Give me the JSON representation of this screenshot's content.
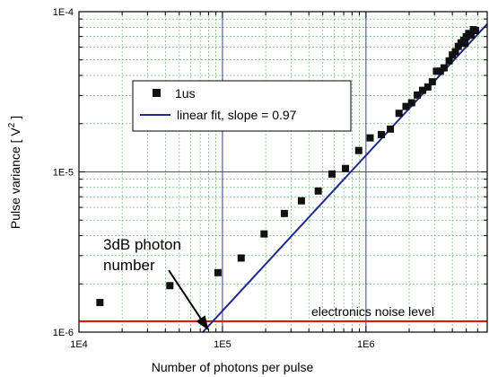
{
  "chart_data": {
    "type": "scatter",
    "xlabel": "Number of photons per pulse",
    "ylabel": "Pulse variance [ V",
    "ylabel_sup": "2",
    "ylabel_end": " ]",
    "x_scale": "log",
    "y_scale": "log",
    "xlim": [
      10000,
      7000000
    ],
    "ylim": [
      1e-06,
      0.0001
    ],
    "x_ticks": [
      {
        "value": 10000,
        "label": "1E4"
      },
      {
        "value": 100000,
        "label": "1E5"
      },
      {
        "value": 1000000,
        "label": "1E6"
      }
    ],
    "y_ticks": [
      {
        "value": 1e-06,
        "label": "1E-6"
      },
      {
        "value": 1e-05,
        "label": "1E-5"
      },
      {
        "value": 0.0001,
        "label": "1E-4"
      }
    ],
    "grid": true,
    "legend_position": "upper-left",
    "series": [
      {
        "name": "1us",
        "type": "scatter",
        "marker": "square",
        "color": "#111111",
        "points": [
          [
            14000,
            1.53e-06
          ],
          [
            43000,
            1.95e-06
          ],
          [
            93000,
            2.35e-06
          ],
          [
            135000,
            2.9e-06
          ],
          [
            195000,
            4.1e-06
          ],
          [
            270000,
            5.5e-06
          ],
          [
            355000,
            6.6e-06
          ],
          [
            465000,
            7.6e-06
          ],
          [
            580000,
            9.7e-06
          ],
          [
            720000,
            1.05e-05
          ],
          [
            890000,
            1.36e-05
          ],
          [
            1070000,
            1.63e-05
          ],
          [
            1280000,
            1.71e-05
          ],
          [
            1480000,
            1.85e-05
          ],
          [
            1700000,
            2.32e-05
          ],
          [
            1900000,
            2.56e-05
          ],
          [
            2080000,
            2.7e-05
          ],
          [
            2280000,
            3.02e-05
          ],
          [
            2480000,
            3.23e-05
          ],
          [
            2700000,
            3.39e-05
          ],
          [
            2900000,
            3.65e-05
          ],
          [
            3100000,
            4.25e-05
          ],
          [
            3300000,
            4.25e-05
          ],
          [
            3500000,
            4.46e-05
          ],
          [
            3800000,
            4.93e-05
          ],
          [
            4000000,
            5.37e-05
          ],
          [
            4200000,
            5.62e-05
          ],
          [
            4400000,
            6.07e-05
          ],
          [
            4600000,
            6.39e-05
          ],
          [
            4800000,
            6.63e-05
          ],
          [
            5000000,
            6.98e-05
          ],
          [
            5200000,
            7.31e-05
          ],
          [
            5400000,
            7.13e-05
          ],
          [
            5600000,
            7.72e-05
          ],
          [
            5800000,
            7.62e-05
          ],
          [
            4900000,
            6.35e-05
          ]
        ]
      },
      {
        "name": "linear fit, slope = 0.97",
        "type": "line",
        "color": "#1f2a8c",
        "points": [
          [
            73000,
            1e-06
          ],
          [
            7000000,
            8.38e-05
          ]
        ]
      }
    ],
    "reference_lines": [
      {
        "label": "electronics noise level",
        "y": 1.17e-06,
        "color": "#e60000"
      }
    ],
    "annotations": {
      "photon_label_line1": "3dB photon",
      "photon_label_line2": "number",
      "arrow_target": [
        80000,
        1e-06
      ]
    },
    "highlight_vlines": [
      {
        "x": 100000,
        "color": "#3a3ab0"
      },
      {
        "x": 1000000,
        "color": "#3a3ab0"
      }
    ],
    "highlight_hline": {
      "y": 1e-05,
      "color": "#555555"
    }
  }
}
